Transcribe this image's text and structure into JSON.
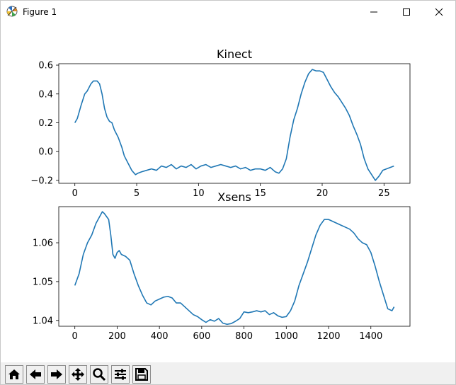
{
  "window": {
    "title": "Figure 1",
    "icon": "matplotlib-logo-icon",
    "controls": [
      "minimize-icon",
      "maximize-icon",
      "close-icon"
    ]
  },
  "toolbar": {
    "buttons": [
      {
        "name": "home-button",
        "icon": "home-icon"
      },
      {
        "name": "back-button",
        "icon": "arrow-left-icon"
      },
      {
        "name": "forward-button",
        "icon": "arrow-right-icon"
      },
      {
        "name": "pan-button",
        "icon": "move-icon"
      },
      {
        "name": "zoom-button",
        "icon": "magnifier-icon"
      },
      {
        "name": "configure-subplots-button",
        "icon": "sliders-icon"
      },
      {
        "name": "save-button",
        "icon": "floppy-disk-icon"
      }
    ]
  },
  "colors": {
    "line": "#1f77b4",
    "axes": "#000000",
    "toolbar_bg": "#f0f0f0"
  },
  "chart_data": [
    {
      "type": "line",
      "title": "Kinect",
      "xlim": [
        -1.3,
        27.1
      ],
      "ylim": [
        -0.22,
        0.61
      ],
      "xticks": [
        0,
        5,
        10,
        15,
        20,
        25
      ],
      "yticks": [
        -0.2,
        0.0,
        0.2,
        0.4,
        0.6
      ],
      "ytick_labels": [
        "−0.2",
        "0.0",
        "0.2",
        "0.4",
        "0.6"
      ],
      "series": [
        {
          "color": "#1f77b4",
          "x": [
            0,
            0.2,
            0.5,
            0.8,
            1.0,
            1.3,
            1.5,
            1.8,
            2.0,
            2.2,
            2.4,
            2.6,
            2.8,
            3.0,
            3.2,
            3.5,
            3.8,
            4.0,
            4.3,
            4.6,
            4.9,
            5.1,
            5.4,
            5.8,
            6.2,
            6.6,
            7.0,
            7.4,
            7.8,
            8.2,
            8.6,
            9.0,
            9.4,
            9.8,
            10.2,
            10.6,
            11.0,
            11.4,
            11.8,
            12.2,
            12.6,
            13.0,
            13.4,
            13.8,
            14.2,
            14.6,
            15.0,
            15.4,
            15.8,
            16.2,
            16.5,
            16.8,
            17.1,
            17.4,
            17.7,
            18.0,
            18.3,
            18.6,
            18.9,
            19.2,
            19.5,
            19.8,
            20.1,
            20.4,
            20.7,
            21.0,
            21.3,
            21.6,
            21.9,
            22.2,
            22.5,
            22.8,
            23.1,
            23.4,
            23.7,
            24.0,
            24.3,
            24.6,
            24.9,
            25.2,
            25.5,
            25.8
          ],
          "y": [
            0.2,
            0.23,
            0.32,
            0.4,
            0.42,
            0.47,
            0.49,
            0.49,
            0.47,
            0.4,
            0.3,
            0.24,
            0.21,
            0.2,
            0.15,
            0.1,
            0.03,
            -0.03,
            -0.08,
            -0.13,
            -0.16,
            -0.15,
            -0.14,
            -0.13,
            -0.12,
            -0.13,
            -0.1,
            -0.11,
            -0.09,
            -0.12,
            -0.1,
            -0.11,
            -0.09,
            -0.12,
            -0.1,
            -0.09,
            -0.11,
            -0.1,
            -0.09,
            -0.1,
            -0.11,
            -0.1,
            -0.12,
            -0.11,
            -0.13,
            -0.12,
            -0.12,
            -0.13,
            -0.11,
            -0.14,
            -0.15,
            -0.12,
            -0.05,
            0.1,
            0.22,
            0.3,
            0.4,
            0.48,
            0.54,
            0.57,
            0.56,
            0.56,
            0.55,
            0.5,
            0.45,
            0.41,
            0.38,
            0.34,
            0.3,
            0.25,
            0.18,
            0.12,
            0.05,
            -0.05,
            -0.12,
            -0.16,
            -0.2,
            -0.17,
            -0.13,
            -0.12,
            -0.11,
            -0.1
          ]
        }
      ]
    },
    {
      "type": "line",
      "title": "Xsens",
      "xlim": [
        -76,
        1585
      ],
      "ylim": [
        1.0385,
        1.0693
      ],
      "xticks": [
        0,
        200,
        400,
        600,
        800,
        1000,
        1200,
        1400
      ],
      "yticks": [
        1.04,
        1.05,
        1.06
      ],
      "ytick_labels": [
        "1.04",
        "1.05",
        "1.06"
      ],
      "series": [
        {
          "color": "#1f77b4",
          "x": [
            0,
            20,
            40,
            60,
            80,
            100,
            120,
            130,
            140,
            160,
            170,
            180,
            190,
            200,
            210,
            220,
            240,
            260,
            280,
            300,
            320,
            340,
            360,
            380,
            400,
            420,
            440,
            460,
            480,
            500,
            520,
            540,
            560,
            580,
            600,
            620,
            640,
            660,
            680,
            700,
            720,
            740,
            760,
            780,
            800,
            820,
            840,
            860,
            880,
            900,
            920,
            940,
            960,
            980,
            1000,
            1020,
            1040,
            1060,
            1080,
            1100,
            1120,
            1140,
            1160,
            1180,
            1200,
            1220,
            1240,
            1260,
            1280,
            1300,
            1320,
            1340,
            1360,
            1380,
            1400,
            1420,
            1440,
            1460,
            1480,
            1500,
            1510
          ],
          "y": [
            1.049,
            1.052,
            1.057,
            1.06,
            1.062,
            1.065,
            1.067,
            1.068,
            1.0675,
            1.066,
            1.062,
            1.057,
            1.056,
            1.0575,
            1.058,
            1.057,
            1.0565,
            1.0555,
            1.052,
            1.049,
            1.0465,
            1.0445,
            1.044,
            1.045,
            1.0455,
            1.046,
            1.0462,
            1.0458,
            1.0445,
            1.0445,
            1.0435,
            1.0425,
            1.0415,
            1.041,
            1.0402,
            1.0395,
            1.0402,
            1.0398,
            1.0405,
            1.0393,
            1.039,
            1.0392,
            1.0398,
            1.0405,
            1.0422,
            1.042,
            1.0422,
            1.0425,
            1.0422,
            1.0425,
            1.0415,
            1.042,
            1.0412,
            1.0408,
            1.041,
            1.0425,
            1.045,
            1.049,
            1.052,
            1.055,
            1.0585,
            1.062,
            1.0645,
            1.066,
            1.066,
            1.0655,
            1.065,
            1.0645,
            1.064,
            1.0635,
            1.0625,
            1.061,
            1.06,
            1.0595,
            1.0575,
            1.054,
            1.05,
            1.0465,
            1.043,
            1.0425,
            1.0435
          ]
        }
      ]
    }
  ]
}
